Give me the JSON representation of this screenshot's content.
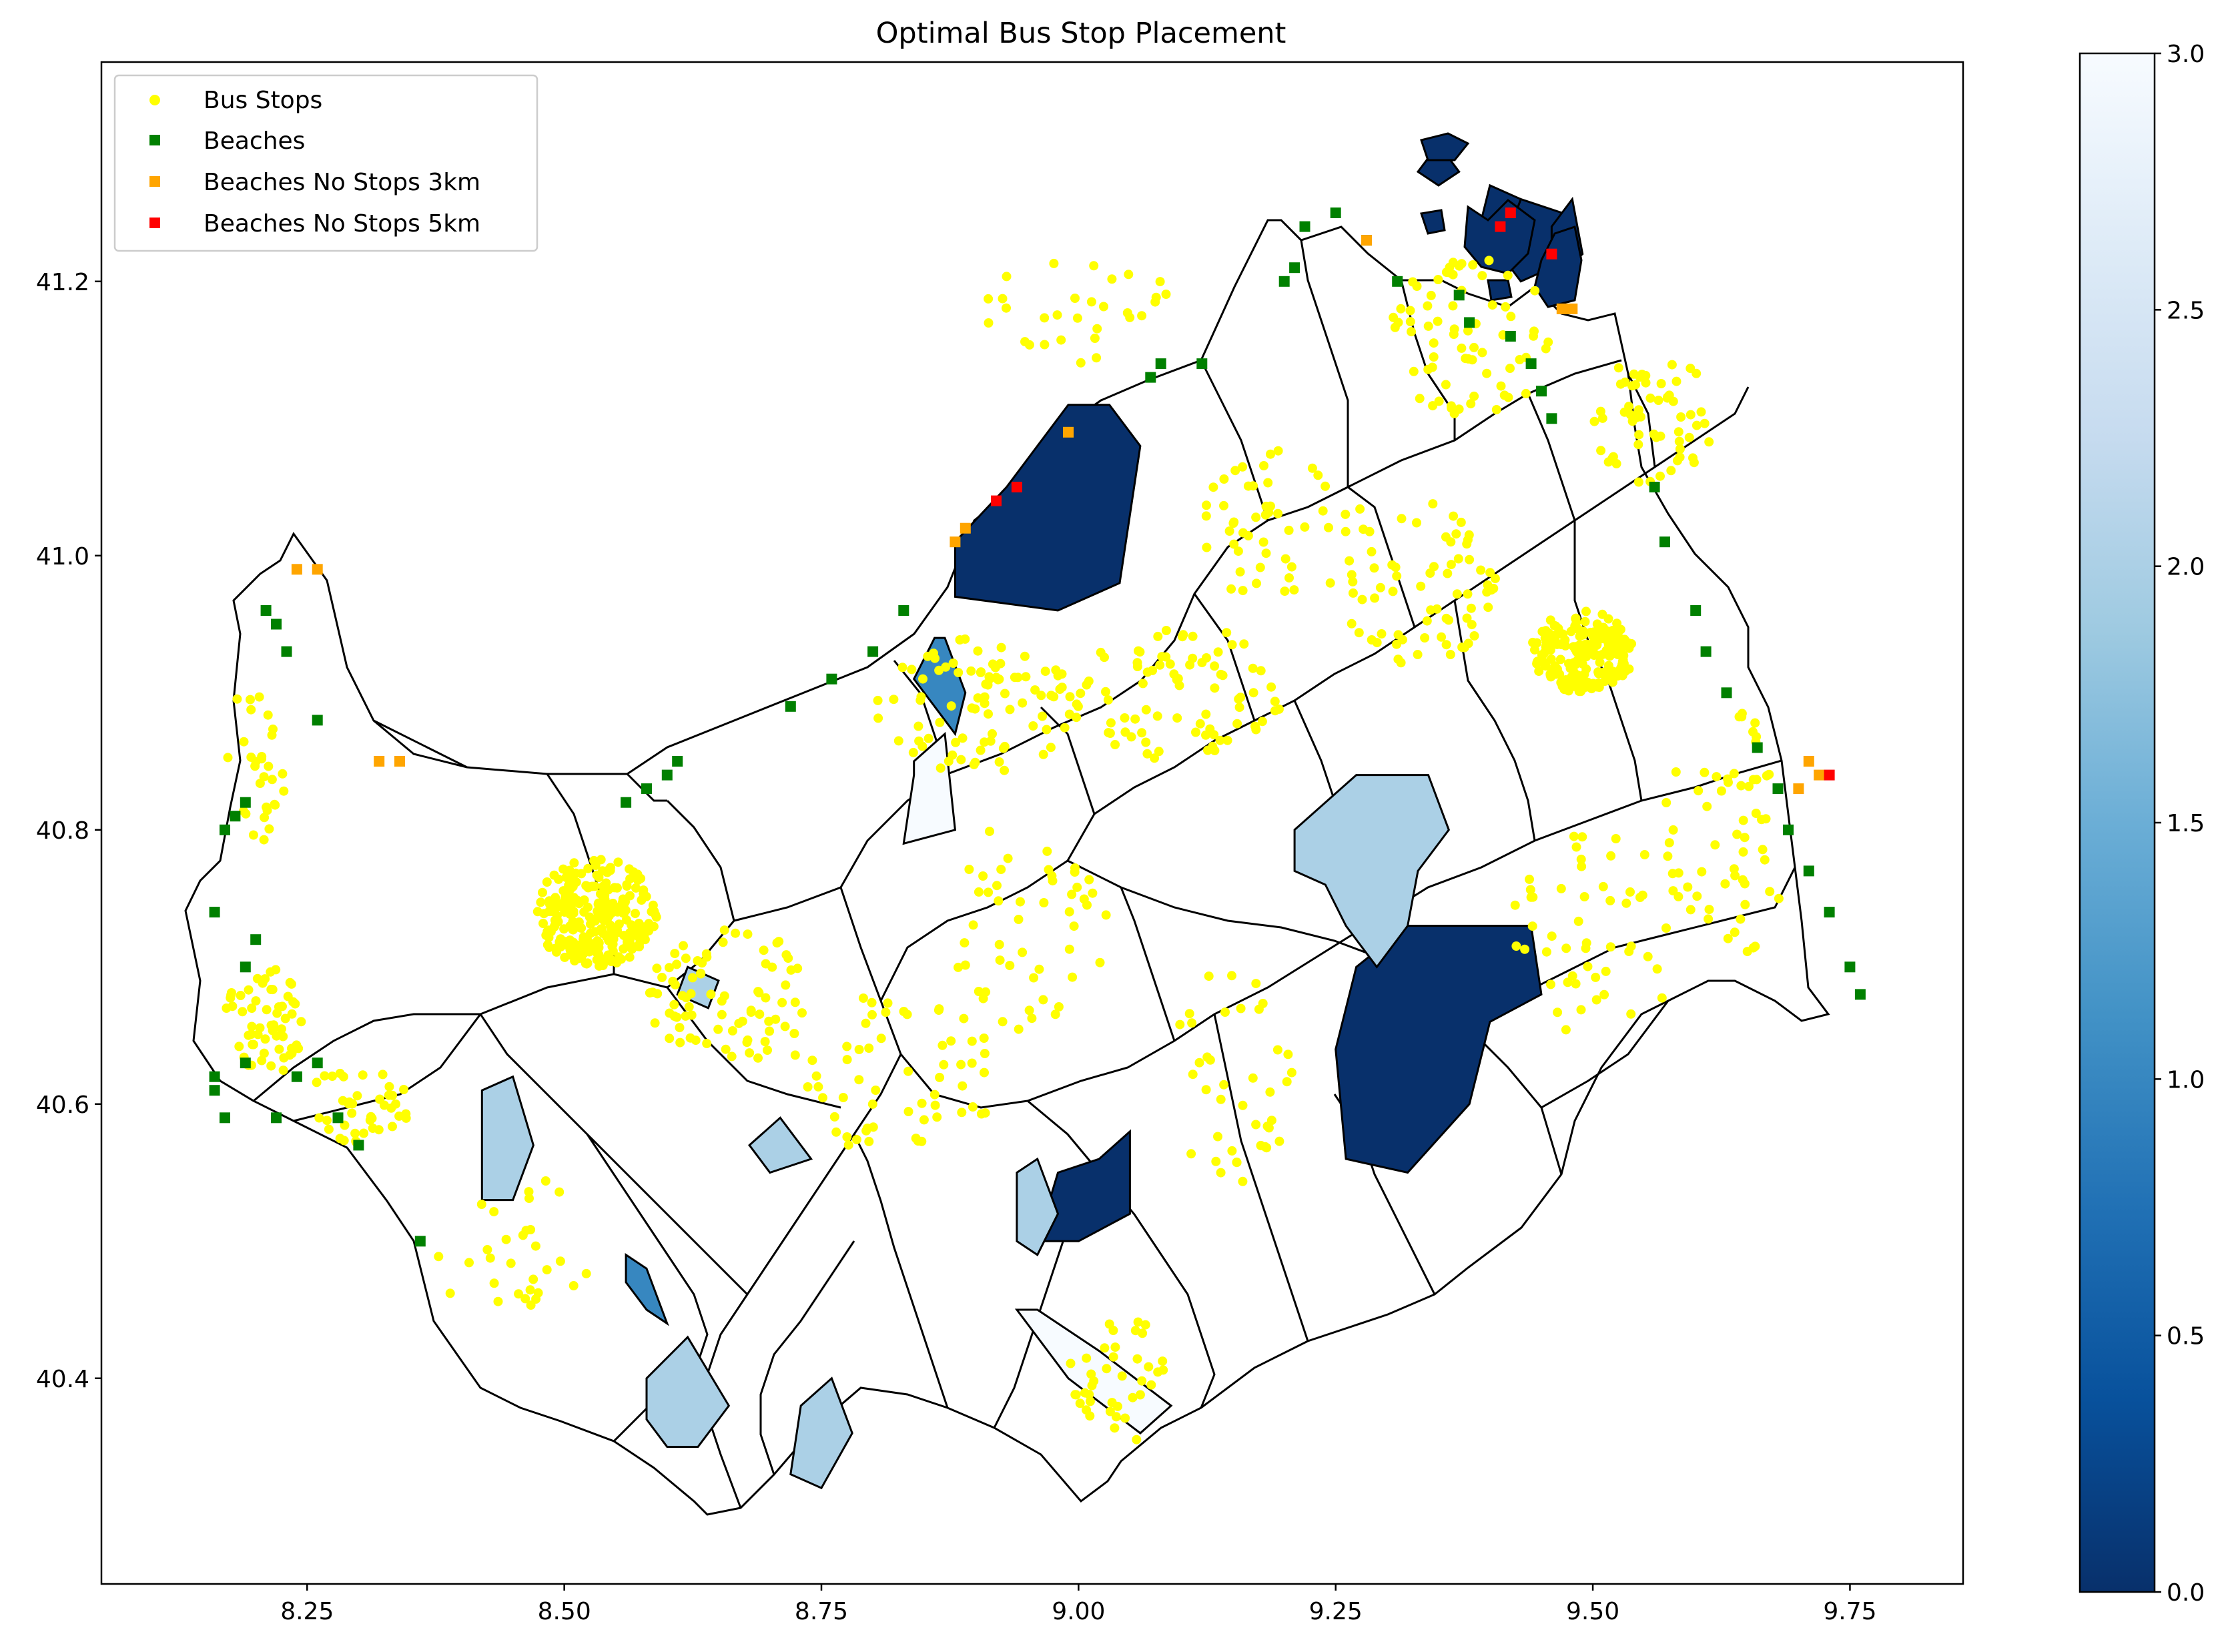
{
  "title": "Optimal Bus Stop Placement",
  "chart_data": {
    "type": "map",
    "xlim": [
      8.05,
      9.86
    ],
    "ylim": [
      40.25,
      41.36
    ],
    "x_ticks": [
      "8.25",
      "8.50",
      "8.75",
      "9.00",
      "9.25",
      "9.50",
      "9.75"
    ],
    "x_tick_values": [
      8.25,
      8.5,
      8.75,
      9.0,
      9.25,
      9.5,
      9.75
    ],
    "y_ticks": [
      "40.4",
      "40.6",
      "40.8",
      "41.0",
      "41.2"
    ],
    "y_tick_values": [
      40.4,
      40.6,
      40.8,
      41.0,
      41.2
    ],
    "legend_location": "upper left",
    "legend": [
      {
        "label": "Bus Stops",
        "color": "#ffff00",
        "marker": "circle"
      },
      {
        "label": "Beaches",
        "color": "#008000",
        "marker": "square"
      },
      {
        "label": "Beaches No Stops 3km",
        "color": "#ffa500",
        "marker": "square"
      },
      {
        "label": "Beaches No Stops 5km",
        "color": "#ff0000",
        "marker": "square"
      }
    ],
    "colorbar": {
      "colormap": "Blues_r",
      "min": 0.0,
      "max": 3.0,
      "ticks": [
        "0.0",
        "0.5",
        "1.0",
        "1.5",
        "2.0",
        "2.5",
        "3.0"
      ],
      "tick_values": [
        0.0,
        0.5,
        1.0,
        1.5,
        2.0,
        2.5,
        3.0
      ]
    },
    "shaded_areas": [
      {
        "value": 0.0,
        "points": [
          [
            8.88,
            41.01
          ],
          [
            8.93,
            41.05
          ],
          [
            8.96,
            41.08
          ],
          [
            8.99,
            41.11
          ],
          [
            9.03,
            41.11
          ],
          [
            9.06,
            41.08
          ],
          [
            9.04,
            40.98
          ],
          [
            8.98,
            40.96
          ],
          [
            8.88,
            40.97
          ]
        ]
      },
      {
        "value": 0.0,
        "points": [
          [
            9.27,
            40.7
          ],
          [
            9.32,
            40.73
          ],
          [
            9.44,
            40.73
          ],
          [
            9.45,
            40.68
          ],
          [
            9.4,
            40.66
          ],
          [
            9.38,
            40.6
          ],
          [
            9.32,
            40.55
          ],
          [
            9.26,
            40.56
          ],
          [
            9.25,
            40.64
          ]
        ]
      },
      {
        "value": 0.0,
        "points": [
          [
            8.98,
            40.55
          ],
          [
            9.02,
            40.56
          ],
          [
            9.05,
            40.58
          ],
          [
            9.05,
            40.52
          ],
          [
            9.0,
            40.5
          ],
          [
            8.96,
            40.5
          ]
        ]
      },
      {
        "value": 0.0,
        "points": [
          [
            9.41,
            41.22
          ],
          [
            9.43,
            41.26
          ],
          [
            9.47,
            41.25
          ],
          [
            9.46,
            41.21
          ],
          [
            9.43,
            41.2
          ]
        ]
      },
      {
        "value": 0.0,
        "points": [
          [
            9.39,
            41.24
          ],
          [
            9.4,
            41.27
          ],
          [
            9.43,
            41.26
          ],
          [
            9.41,
            41.22
          ]
        ]
      },
      {
        "value": 0.0,
        "points": [
          [
            9.46,
            41.24
          ],
          [
            9.48,
            41.26
          ],
          [
            9.49,
            41.22
          ],
          [
            9.46,
            41.2
          ]
        ]
      },
      {
        "value": 0.0,
        "points": [
          [
            9.33,
            41.28
          ],
          [
            9.35,
            41.3
          ],
          [
            9.37,
            41.28
          ],
          [
            9.35,
            41.27
          ]
        ]
      },
      {
        "value": 2.0,
        "points": [
          [
            9.21,
            40.8
          ],
          [
            9.27,
            40.84
          ],
          [
            9.34,
            40.84
          ],
          [
            9.36,
            40.8
          ],
          [
            9.33,
            40.77
          ],
          [
            9.32,
            40.73
          ],
          [
            9.29,
            40.7
          ],
          [
            9.26,
            40.73
          ],
          [
            9.24,
            40.76
          ],
          [
            9.21,
            40.77
          ]
        ]
      },
      {
        "value": 2.0,
        "points": [
          [
            8.42,
            40.61
          ],
          [
            8.45,
            40.62
          ],
          [
            8.47,
            40.57
          ],
          [
            8.45,
            40.53
          ],
          [
            8.42,
            40.53
          ]
        ]
      },
      {
        "value": 2.0,
        "points": [
          [
            8.58,
            40.4
          ],
          [
            8.62,
            40.43
          ],
          [
            8.66,
            40.38
          ],
          [
            8.63,
            40.35
          ],
          [
            8.6,
            40.35
          ],
          [
            8.58,
            40.37
          ]
        ]
      },
      {
        "value": 2.0,
        "points": [
          [
            8.73,
            40.38
          ],
          [
            8.76,
            40.4
          ],
          [
            8.78,
            40.36
          ],
          [
            8.75,
            40.32
          ],
          [
            8.72,
            40.33
          ]
        ]
      },
      {
        "value": 2.0,
        "points": [
          [
            8.68,
            40.57
          ],
          [
            8.71,
            40.59
          ],
          [
            8.74,
            40.56
          ],
          [
            8.7,
            40.55
          ]
        ]
      },
      {
        "value": 2.0,
        "points": [
          [
            8.94,
            40.55
          ],
          [
            8.96,
            40.56
          ],
          [
            8.98,
            40.52
          ],
          [
            8.96,
            40.49
          ],
          [
            8.94,
            40.5
          ]
        ]
      },
      {
        "value": 2.0,
        "points": [
          [
            8.62,
            40.7
          ],
          [
            8.65,
            40.69
          ],
          [
            8.64,
            40.67
          ],
          [
            8.61,
            40.68
          ]
        ]
      },
      {
        "value": 1.0,
        "points": [
          [
            8.86,
            40.94
          ],
          [
            8.87,
            40.94
          ],
          [
            8.89,
            40.9
          ],
          [
            8.88,
            40.87
          ],
          [
            8.86,
            40.89
          ],
          [
            8.84,
            40.91
          ]
        ]
      },
      {
        "value": 1.0,
        "points": [
          [
            8.56,
            40.49
          ],
          [
            8.58,
            40.48
          ],
          [
            8.6,
            40.44
          ],
          [
            8.58,
            40.45
          ],
          [
            8.56,
            40.47
          ]
        ]
      },
      {
        "value": 3.0,
        "points": [
          [
            8.84,
            40.85
          ],
          [
            8.87,
            40.87
          ],
          [
            8.88,
            40.8
          ],
          [
            8.83,
            40.79
          ],
          [
            8.84,
            40.84
          ]
        ]
      },
      {
        "value": 3.0,
        "points": [
          [
            8.94,
            40.45
          ],
          [
            8.99,
            40.4
          ],
          [
            9.06,
            40.36
          ],
          [
            9.09,
            40.38
          ],
          [
            9.02,
            40.42
          ],
          [
            8.96,
            40.45
          ]
        ]
      }
    ],
    "beaches": [
      [
        8.16,
        40.62
      ],
      [
        8.16,
        40.61
      ],
      [
        8.17,
        40.59
      ],
      [
        8.19,
        40.63
      ],
      [
        8.22,
        40.59
      ],
      [
        8.24,
        40.62
      ],
      [
        8.26,
        40.63
      ],
      [
        8.28,
        40.59
      ],
      [
        8.3,
        40.57
      ],
      [
        8.36,
        40.5
      ],
      [
        8.19,
        40.7
      ],
      [
        8.2,
        40.72
      ],
      [
        8.16,
        40.74
      ],
      [
        8.17,
        40.8
      ],
      [
        8.18,
        40.81
      ],
      [
        8.19,
        40.82
      ],
      [
        8.21,
        40.96
      ],
      [
        8.22,
        40.95
      ],
      [
        8.23,
        40.93
      ],
      [
        8.26,
        40.88
      ],
      [
        8.56,
        40.82
      ],
      [
        8.58,
        40.83
      ],
      [
        8.6,
        40.84
      ],
      [
        8.61,
        40.85
      ],
      [
        8.72,
        40.89
      ],
      [
        8.76,
        40.91
      ],
      [
        8.8,
        40.93
      ],
      [
        8.83,
        40.96
      ],
      [
        9.07,
        41.13
      ],
      [
        9.08,
        41.14
      ],
      [
        9.12,
        41.14
      ],
      [
        9.2,
        41.2
      ],
      [
        9.21,
        41.21
      ],
      [
        9.22,
        41.24
      ],
      [
        9.25,
        41.25
      ],
      [
        9.28,
        41.23
      ],
      [
        9.31,
        41.2
      ],
      [
        9.37,
        41.19
      ],
      [
        9.38,
        41.17
      ],
      [
        9.42,
        41.16
      ],
      [
        9.44,
        41.14
      ],
      [
        9.45,
        41.12
      ],
      [
        9.46,
        41.1
      ],
      [
        9.56,
        41.05
      ],
      [
        9.57,
        41.01
      ],
      [
        9.6,
        40.96
      ],
      [
        9.61,
        40.93
      ],
      [
        9.63,
        40.9
      ],
      [
        9.66,
        40.86
      ],
      [
        9.68,
        40.83
      ],
      [
        9.69,
        40.8
      ],
      [
        9.71,
        40.77
      ],
      [
        9.73,
        40.74
      ],
      [
        9.75,
        40.7
      ],
      [
        9.76,
        40.68
      ]
    ],
    "beaches_no_stops_3km": [
      [
        8.24,
        40.99
      ],
      [
        8.26,
        40.99
      ],
      [
        8.32,
        40.85
      ],
      [
        8.34,
        40.85
      ],
      [
        8.88,
        41.01
      ],
      [
        8.89,
        41.02
      ],
      [
        8.99,
        41.09
      ],
      [
        9.28,
        41.23
      ],
      [
        9.47,
        41.18
      ],
      [
        9.48,
        41.18
      ],
      [
        9.7,
        40.83
      ],
      [
        9.71,
        40.85
      ],
      [
        9.72,
        40.84
      ]
    ],
    "beaches_no_stops_5km": [
      [
        8.92,
        41.04
      ],
      [
        8.94,
        41.05
      ],
      [
        9.41,
        41.24
      ],
      [
        9.42,
        41.25
      ],
      [
        9.46,
        41.22
      ],
      [
        9.73,
        40.84
      ]
    ]
  }
}
